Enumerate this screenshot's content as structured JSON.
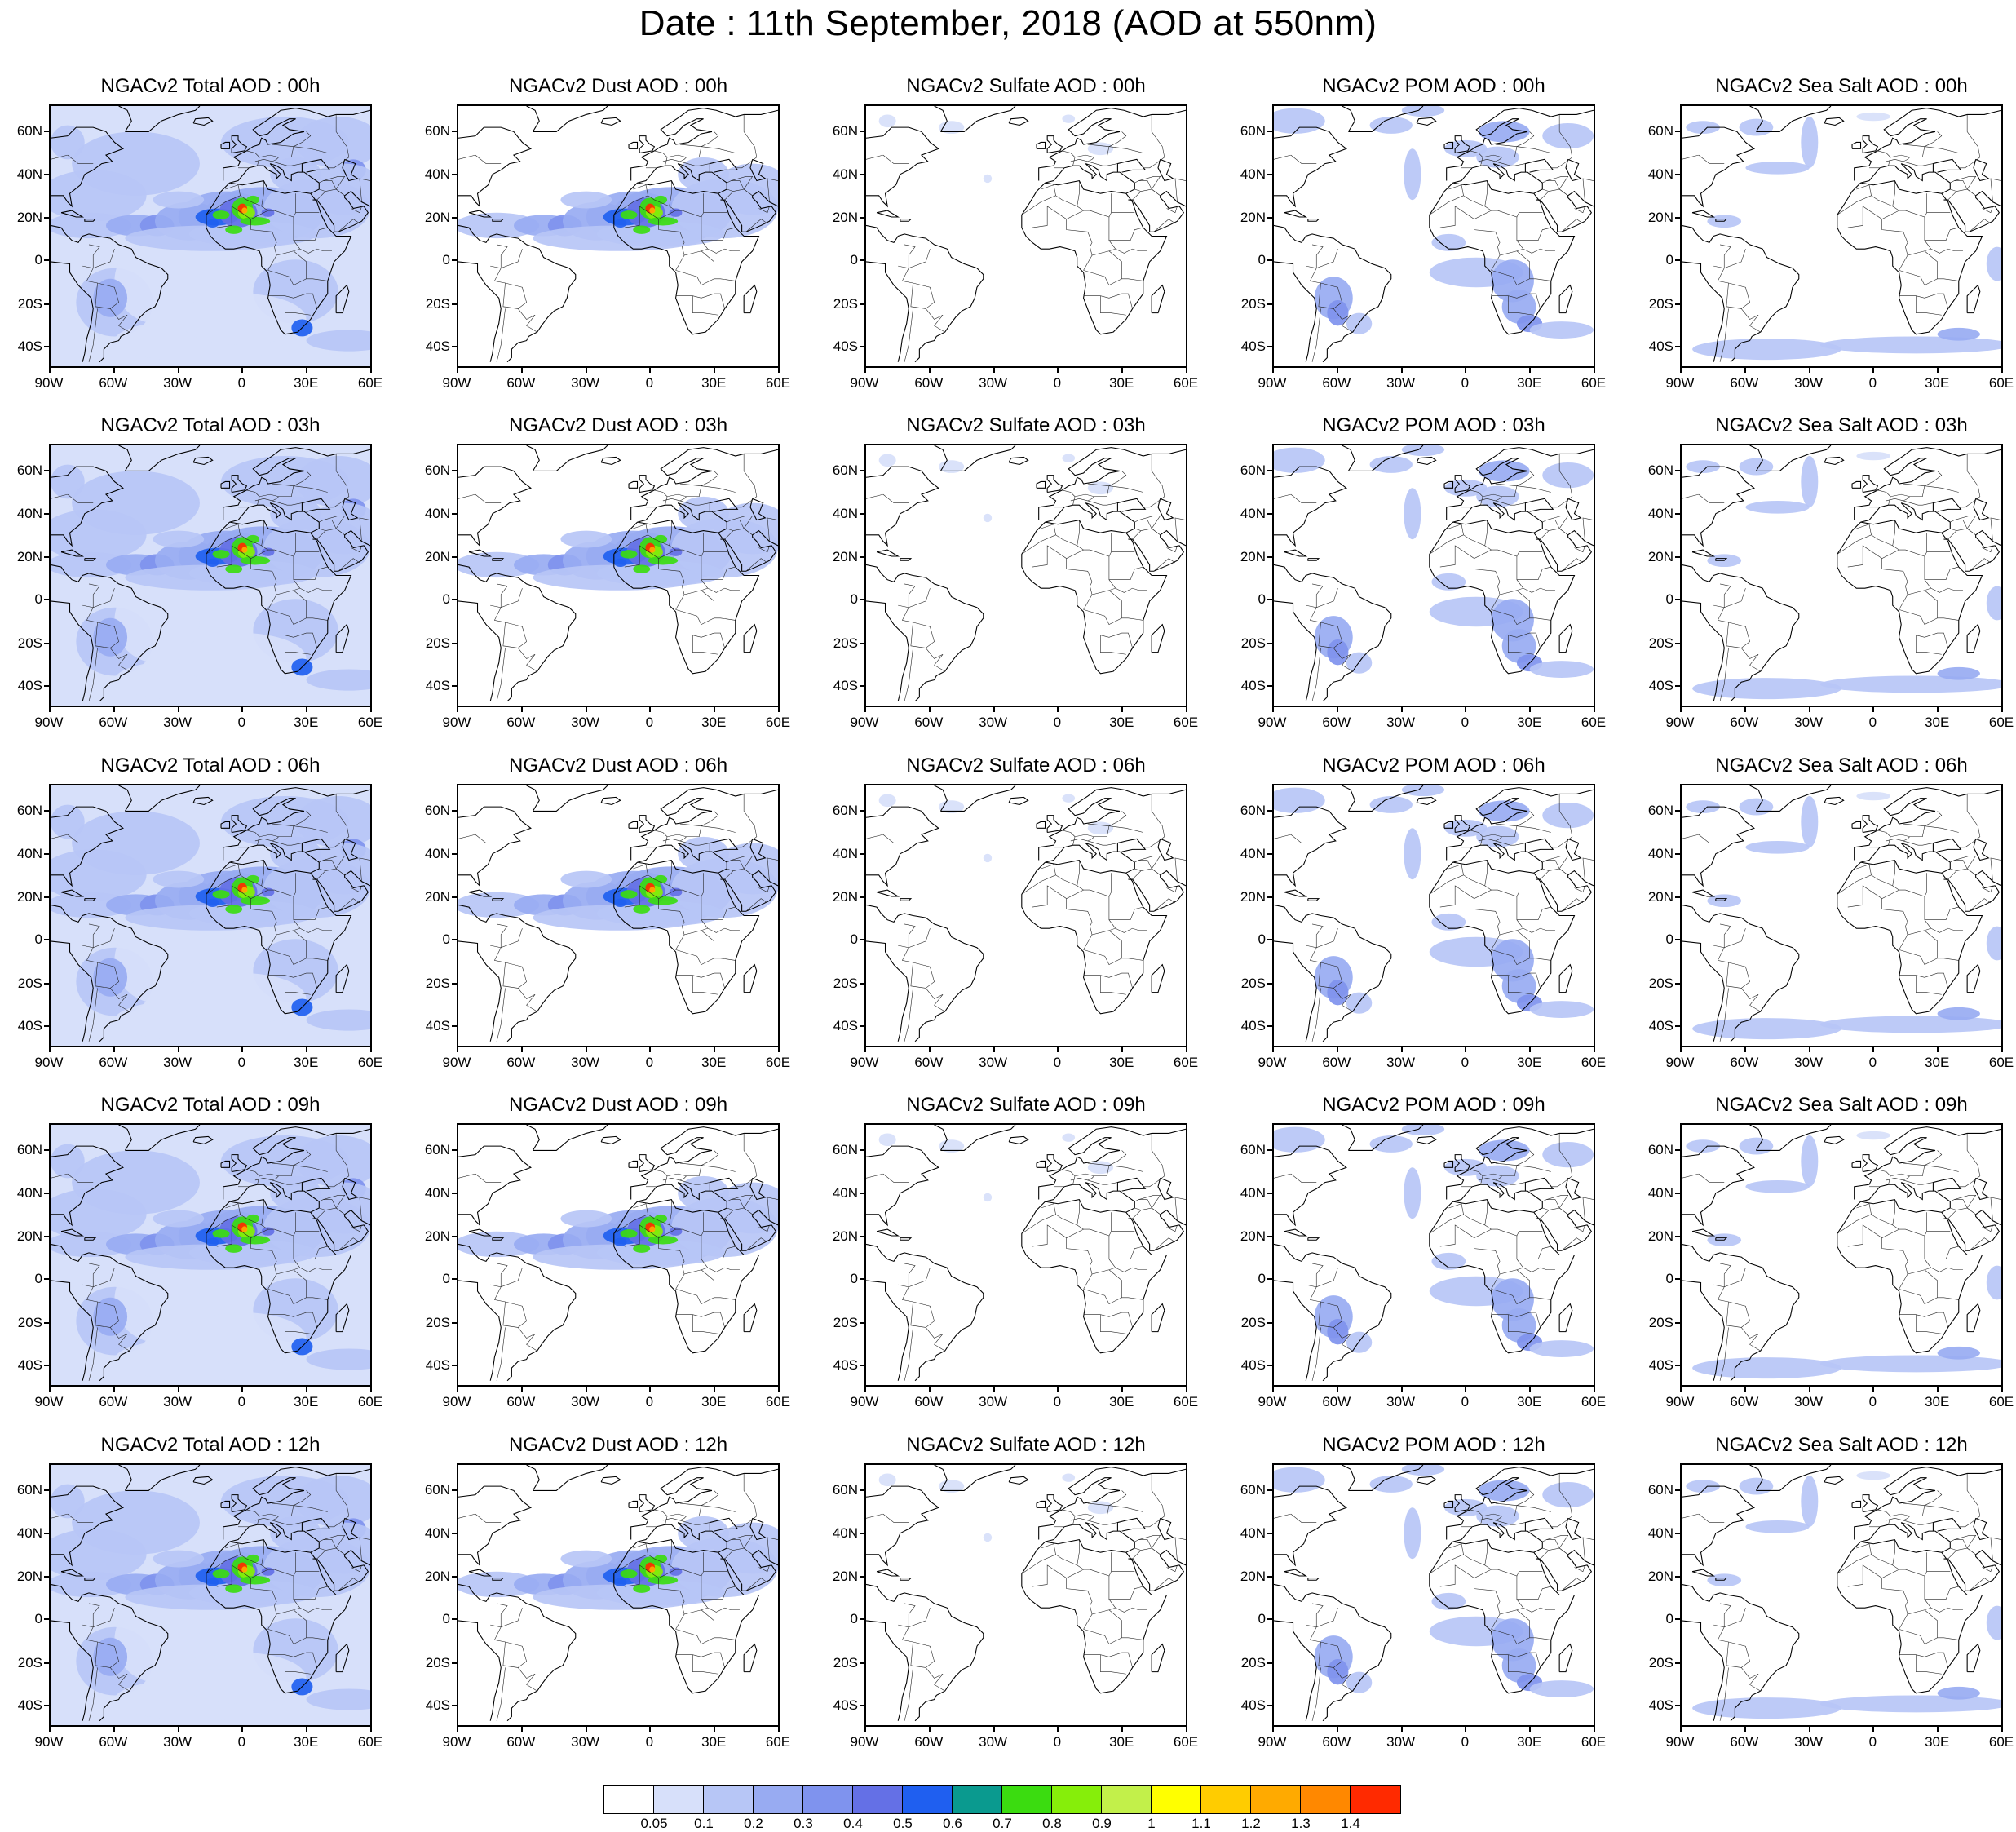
{
  "title": "Date : 11th September, 2018 (AOD at 550nm)",
  "axes": {
    "lat_labels": [
      "60N",
      "40N",
      "20N",
      "0",
      "20S",
      "40S"
    ],
    "lon_labels": [
      "90W",
      "60W",
      "30W",
      "0",
      "30E",
      "60E"
    ]
  },
  "rows": [
    {
      "hour": "00h",
      "titles": [
        "NGACv2 Total AOD : 00h",
        "NGACv2 Dust AOD : 00h",
        "NGACv2 Sulfate AOD : 00h",
        "NGACv2 POM AOD : 00h",
        "NGACv2 Sea Salt AOD : 00h"
      ]
    },
    {
      "hour": "03h",
      "titles": [
        "NGACv2 Total AOD : 03h",
        "NGACv2 Dust AOD : 03h",
        "NGACv2 Sulfate AOD : 03h",
        "NGACv2 POM AOD : 03h",
        "NGACv2 Sea Salt AOD : 03h"
      ]
    },
    {
      "hour": "06h",
      "titles": [
        "NGACv2 Total AOD : 06h",
        "NGACv2 Dust AOD : 06h",
        "NGACv2 Sulfate AOD : 06h",
        "NGACv2 POM AOD : 06h",
        "NGACv2 Sea Salt AOD : 06h"
      ]
    },
    {
      "hour": "09h",
      "titles": [
        "NGACv2 Total AOD : 09h",
        "NGACv2 Dust AOD : 09h",
        "NGACv2 Sulfate AOD : 09h",
        "NGACv2 POM AOD : 09h",
        "NGACv2 Sea Salt  AOD : 09h"
      ]
    },
    {
      "hour": "12h",
      "titles": [
        "NGACv2 Total AOD  : 12h",
        "NGACv2 Dust AOD : 12h",
        "NGACv2 Sulfate AOD : 12h",
        "NGACv2 POM  AOD : 12h",
        "NGACv2 Sea Salt  AOD : 12h"
      ]
    }
  ],
  "species": [
    "total",
    "dust",
    "sulfate",
    "pom",
    "seasalt"
  ],
  "colorbar": {
    "labels": [
      "0.05",
      "0.1",
      "0.2",
      "0.3",
      "0.4",
      "0.5",
      "0.6",
      "0.7",
      "0.8",
      "0.9",
      "1",
      "1.1",
      "1.2",
      "1.3",
      "1.4"
    ],
    "colors": [
      "#ffffff",
      "#d7e0fa",
      "#b7c6f6",
      "#98abf2",
      "#7f93ee",
      "#6470e6",
      "#1f5ff0",
      "#0a9a8f",
      "#3bdc10",
      "#86ee0a",
      "#c2f04a",
      "#ffff00",
      "#ffcc00",
      "#ffaa00",
      "#ff8800",
      "#ff2a00"
    ]
  }
}
